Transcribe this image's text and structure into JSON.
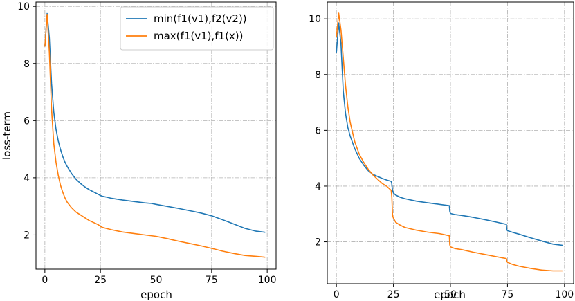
{
  "chart_data": [
    {
      "type": "line",
      "title": "",
      "xlabel": "epoch",
      "ylabel": "loss-term",
      "xlim": [
        -4,
        104
      ],
      "ylim": [
        0.8,
        10.15
      ],
      "xticks": [
        0,
        25,
        50,
        75,
        100
      ],
      "yticks": [
        2,
        4,
        6,
        8,
        10
      ],
      "grid": true,
      "legend": "top-right",
      "series": [
        {
          "name": "min(f1(v1),f2(v2))",
          "color": "#1f77b4",
          "x": [
            0,
            1,
            2,
            3,
            4,
            5,
            6,
            7,
            8,
            9,
            10,
            12,
            14,
            16,
            18,
            20,
            22,
            24,
            25,
            26,
            28,
            30,
            35,
            40,
            45,
            48,
            50,
            55,
            60,
            65,
            70,
            75,
            80,
            85,
            90,
            95,
            99
          ],
          "y": [
            8.6,
            9.75,
            8.9,
            7.3,
            6.3,
            5.7,
            5.3,
            5.0,
            4.75,
            4.55,
            4.4,
            4.15,
            3.95,
            3.8,
            3.68,
            3.58,
            3.5,
            3.42,
            3.38,
            3.35,
            3.32,
            3.28,
            3.22,
            3.17,
            3.12,
            3.1,
            3.07,
            3.0,
            2.93,
            2.85,
            2.77,
            2.67,
            2.53,
            2.38,
            2.23,
            2.13,
            2.09
          ]
        },
        {
          "name": "max(f1(v1),f1(x))",
          "color": "#ff7f0e",
          "x": [
            0,
            1,
            2,
            3,
            4,
            5,
            6,
            7,
            8,
            9,
            10,
            12,
            14,
            16,
            18,
            20,
            22,
            24,
            25,
            26,
            28,
            30,
            35,
            40,
            45,
            50,
            55,
            60,
            65,
            70,
            75,
            80,
            85,
            90,
            95,
            99
          ],
          "y": [
            8.6,
            9.72,
            8.4,
            6.4,
            5.2,
            4.55,
            4.1,
            3.75,
            3.5,
            3.3,
            3.15,
            2.95,
            2.8,
            2.7,
            2.6,
            2.5,
            2.43,
            2.36,
            2.3,
            2.26,
            2.22,
            2.18,
            2.1,
            2.05,
            2.0,
            1.95,
            1.87,
            1.78,
            1.7,
            1.62,
            1.53,
            1.43,
            1.35,
            1.28,
            1.25,
            1.22
          ]
        }
      ]
    },
    {
      "type": "line",
      "title": "",
      "xlabel": "epoch",
      "ylabel": "",
      "xlim": [
        -4,
        104
      ],
      "ylim": [
        0.5,
        10.6
      ],
      "xticks": [
        0,
        25,
        50,
        75,
        100
      ],
      "yticks": [
        2,
        4,
        6,
        8,
        10
      ],
      "grid": true,
      "legend": "none",
      "series": [
        {
          "name": "blue",
          "color": "#1f77b4",
          "x": [
            0,
            1,
            2,
            3,
            4,
            5,
            6,
            8,
            10,
            12,
            14,
            16,
            18,
            20,
            22,
            24,
            24.2,
            24.6,
            25,
            26,
            28,
            30,
            35,
            40,
            45,
            49.5,
            49.7,
            50,
            52,
            55,
            60,
            65,
            70,
            74.5,
            74.7,
            75,
            77,
            80,
            85,
            90,
            95,
            99
          ],
          "y": [
            8.8,
            9.85,
            9.1,
            7.4,
            6.6,
            6.1,
            5.8,
            5.35,
            5.0,
            4.75,
            4.55,
            4.42,
            4.35,
            4.28,
            4.22,
            4.17,
            4.12,
            3.85,
            3.75,
            3.68,
            3.6,
            3.55,
            3.46,
            3.4,
            3.35,
            3.3,
            3.1,
            3.02,
            2.98,
            2.95,
            2.88,
            2.8,
            2.71,
            2.63,
            2.45,
            2.4,
            2.35,
            2.28,
            2.15,
            2.03,
            1.92,
            1.88
          ]
        },
        {
          "name": "orange",
          "color": "#ff7f0e",
          "x": [
            0,
            1,
            2,
            3,
            4,
            5,
            6,
            8,
            10,
            12,
            14,
            16,
            18,
            20,
            22,
            24,
            24.3,
            24.6,
            25,
            26,
            28,
            30,
            35,
            40,
            45,
            49.5,
            49.7,
            50,
            52,
            55,
            60,
            65,
            70,
            74.5,
            74.7,
            75,
            77,
            80,
            85,
            90,
            95,
            99
          ],
          "y": [
            9.35,
            10.2,
            9.6,
            8.6,
            7.6,
            6.85,
            6.3,
            5.6,
            5.15,
            4.85,
            4.6,
            4.4,
            4.25,
            4.1,
            4.0,
            3.85,
            3.6,
            2.95,
            2.85,
            2.7,
            2.6,
            2.52,
            2.42,
            2.35,
            2.3,
            2.22,
            1.9,
            1.82,
            1.76,
            1.72,
            1.63,
            1.55,
            1.47,
            1.4,
            1.32,
            1.27,
            1.2,
            1.13,
            1.05,
            0.99,
            0.96,
            0.96
          ]
        }
      ]
    }
  ]
}
